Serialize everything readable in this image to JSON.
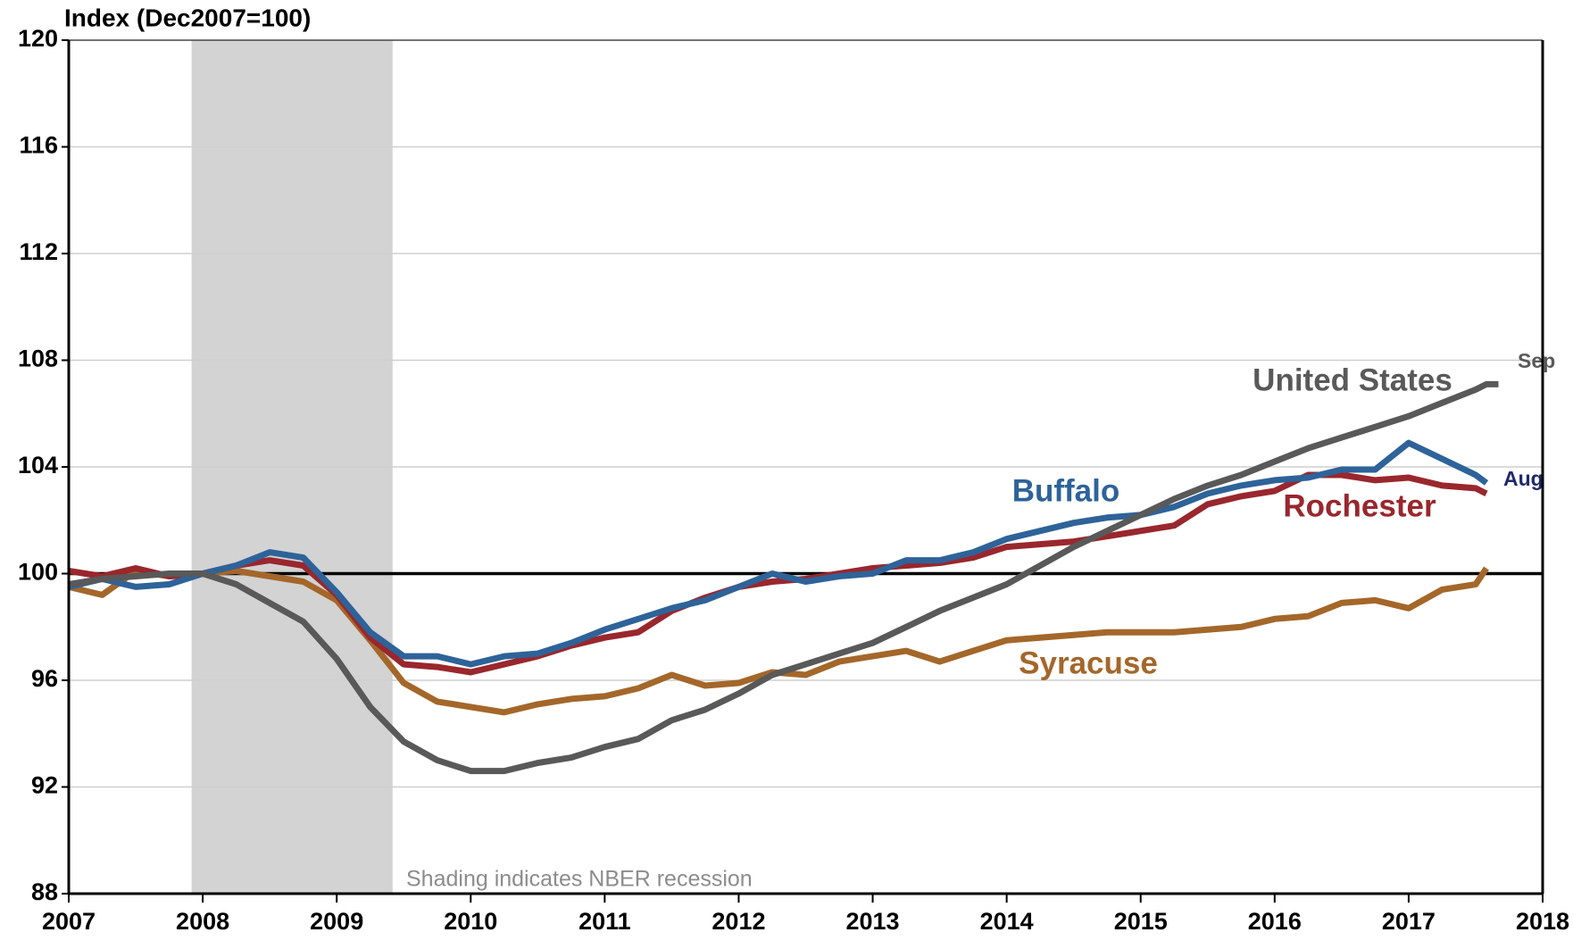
{
  "chart_data": {
    "type": "line",
    "y_axis_label": "Index (Dec2007=100)",
    "note": "Shading indicates NBER recession",
    "recession": [
      2007.917,
      2009.417
    ],
    "reference_line": 100,
    "x": [
      2007.0,
      2007.25,
      2007.5,
      2007.75,
      2008.0,
      2008.25,
      2008.5,
      2008.75,
      2009.0,
      2009.25,
      2009.5,
      2009.75,
      2010.0,
      2010.25,
      2010.5,
      2010.75,
      2011.0,
      2011.25,
      2011.5,
      2011.75,
      2012.0,
      2012.25,
      2012.5,
      2012.75,
      2013.0,
      2013.25,
      2013.5,
      2013.75,
      2014.0,
      2014.25,
      2014.5,
      2014.75,
      2015.0,
      2015.25,
      2015.5,
      2015.75,
      2016.0,
      2016.25,
      2016.5,
      2016.75,
      2017.0,
      2017.25,
      2017.5,
      2017.58,
      2017.67
    ],
    "series": [
      {
        "name": "United States",
        "color": "#595959",
        "end_label": "Sep",
        "values": [
          99.6,
          99.8,
          99.9,
          100.0,
          100.0,
          99.6,
          98.9,
          98.2,
          96.8,
          95.0,
          93.7,
          93.0,
          92.6,
          92.6,
          92.9,
          93.1,
          93.5,
          93.8,
          94.5,
          94.9,
          95.5,
          96.2,
          96.6,
          97.0,
          97.4,
          98.0,
          98.6,
          99.1,
          99.6,
          100.3,
          101.0,
          101.6,
          102.2,
          102.8,
          103.3,
          103.7,
          104.2,
          104.7,
          105.1,
          105.5,
          105.9,
          106.4,
          106.9,
          107.1,
          107.1
        ]
      },
      {
        "name": "Buffalo",
        "color": "#2e6399",
        "end_label": "Aug",
        "values": [
          99.5,
          99.8,
          99.5,
          99.6,
          100.0,
          100.3,
          100.8,
          100.6,
          99.3,
          97.8,
          96.9,
          96.9,
          96.6,
          96.9,
          97.0,
          97.4,
          97.9,
          98.3,
          98.7,
          99.0,
          99.5,
          100.0,
          99.7,
          99.9,
          100.0,
          100.5,
          100.5,
          100.8,
          101.3,
          101.6,
          101.9,
          102.1,
          102.2,
          102.5,
          103.0,
          103.3,
          103.5,
          103.6,
          103.9,
          103.9,
          104.9,
          104.3,
          103.7,
          103.4,
          null
        ]
      },
      {
        "name": "Rochester",
        "color": "#99272d",
        "values": [
          100.1,
          99.9,
          100.2,
          99.9,
          100.0,
          100.3,
          100.5,
          100.3,
          99.2,
          97.6,
          96.6,
          96.5,
          96.3,
          96.6,
          96.9,
          97.3,
          97.6,
          97.8,
          98.6,
          99.1,
          99.5,
          99.7,
          99.8,
          100.0,
          100.2,
          100.3,
          100.4,
          100.6,
          101.0,
          101.1,
          101.2,
          101.4,
          101.6,
          101.8,
          102.6,
          102.9,
          103.1,
          103.7,
          103.7,
          103.5,
          103.6,
          103.3,
          103.2,
          103.0,
          null
        ]
      },
      {
        "name": "Syracuse",
        "color": "#a4672a",
        "values": [
          99.5,
          99.2,
          100.1,
          99.9,
          100.0,
          100.1,
          99.9,
          99.7,
          99.0,
          97.5,
          95.9,
          95.2,
          95.0,
          94.8,
          95.1,
          95.3,
          95.4,
          95.7,
          96.2,
          95.8,
          95.9,
          96.3,
          96.2,
          96.7,
          96.9,
          97.1,
          96.7,
          97.1,
          97.5,
          97.6,
          97.7,
          97.8,
          97.8,
          97.8,
          97.9,
          98.0,
          98.3,
          98.4,
          98.9,
          99.0,
          98.7,
          99.4,
          99.6,
          100.2,
          null
        ]
      }
    ],
    "xlim": [
      2007,
      2018
    ],
    "xticks": [
      2007,
      2008,
      2009,
      2010,
      2011,
      2012,
      2013,
      2014,
      2015,
      2016,
      2017,
      2018
    ],
    "ylim": [
      88,
      120
    ],
    "yticks": [
      88,
      92,
      96,
      100,
      104,
      108,
      112,
      116,
      120
    ],
    "grid": true
  }
}
